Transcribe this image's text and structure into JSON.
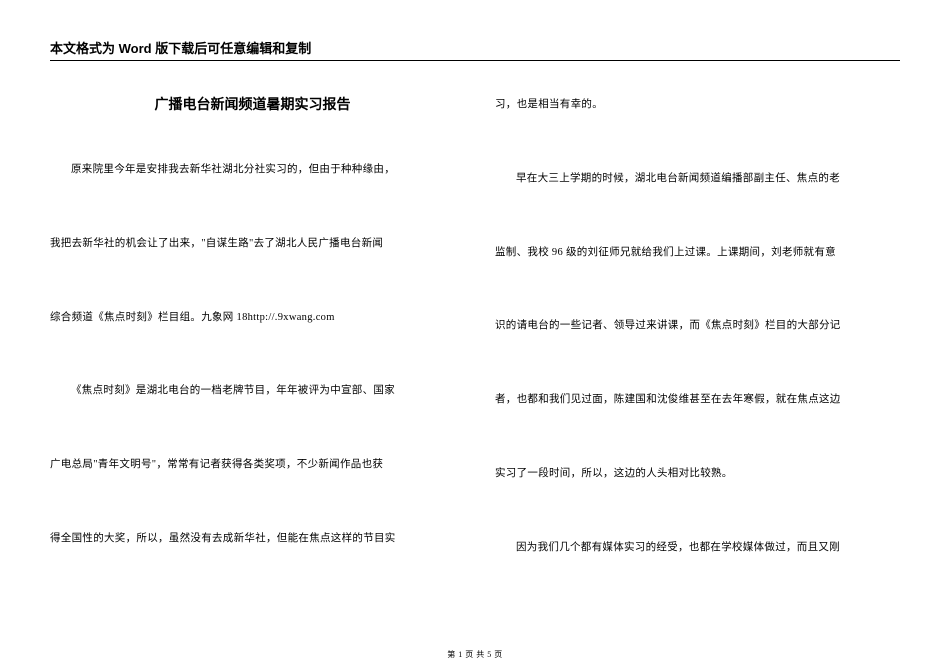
{
  "header": {
    "text": "本文格式为 Word 版下载后可任意编辑和复制"
  },
  "title": "广播电台新闻频道暑期实习报告",
  "left_column": {
    "p1": "原来院里今年是安排我去新华社湖北分社实习的，但由于种种缘由，",
    "p2": "我把去新华社的机会让了出来，\"自谋生路\"去了湖北人民广播电台新闻",
    "p3": "综合频道《焦点时刻》栏目组。九象网 18http://.9xwang.com",
    "p4": "《焦点时刻》是湖北电台的一档老牌节目，年年被评为中宣部、国家",
    "p5": "广电总局\"青年文明号\"，常常有记者获得各类奖项，不少新闻作品也获",
    "p6": "得全国性的大奖，所以，虽然没有去成新华社，但能在焦点这样的节目实"
  },
  "right_column": {
    "p1": "习，也是相当有幸的。",
    "p2": "早在大三上学期的时候，湖北电台新闻频道编播部副主任、焦点的老",
    "p3": "监制、我校 96 级的刘征师兄就给我们上过课。上课期间，刘老师就有意",
    "p4": "识的请电台的一些记者、领导过来讲课，而《焦点时刻》栏目的大部分记",
    "p5": "者，也都和我们见过面，陈建国和沈俊维甚至在去年寒假，就在焦点这边",
    "p6": "实习了一段时间，所以，这边的人头相对比较熟。",
    "p7": "因为我们几个都有媒体实习的经受，也都在学校媒体做过，而且又刚"
  },
  "footer": {
    "text": "第 1 页 共 5 页"
  }
}
